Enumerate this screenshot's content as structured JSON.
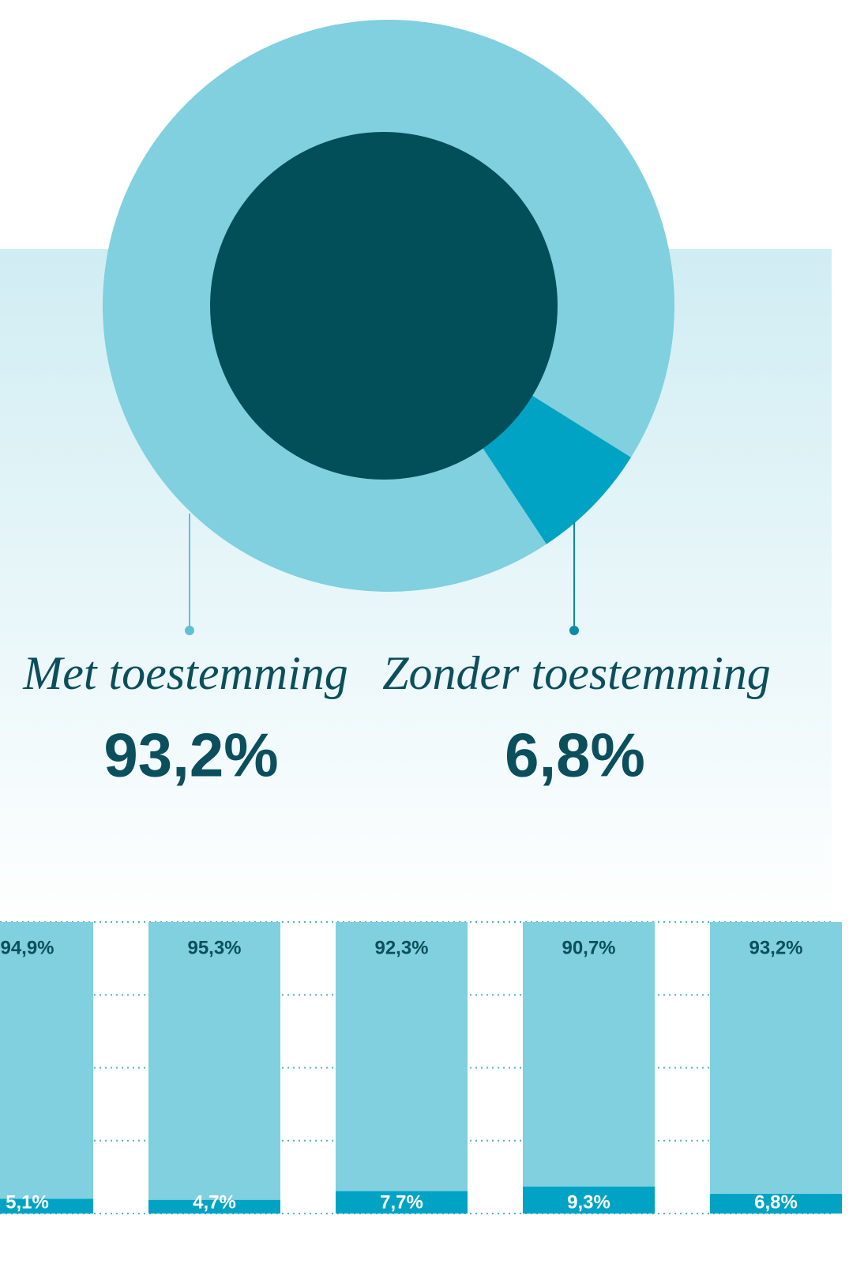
{
  "chart_data": [
    {
      "type": "pie",
      "categories": [
        "Met toestemming",
        "Zonder toestemming"
      ],
      "values": [
        93.2,
        6.8
      ],
      "value_labels": [
        "93,2%",
        "6,8%"
      ],
      "colors": [
        "#80d0df",
        "#00a3c4"
      ]
    },
    {
      "type": "stacked_bar",
      "categories": [
        null,
        null,
        null,
        null,
        null
      ],
      "series": [
        {
          "color": "#00a3c4",
          "values": [
            5.1,
            4.7,
            7.7,
            9.3,
            6.8
          ],
          "value_labels": [
            "5,1%",
            "4,7%",
            "7,7%",
            "9,3%",
            "6,8%"
          ]
        },
        {
          "color": "#80d0df",
          "values": [
            94.9,
            95.3,
            92.3,
            90.7,
            93.2
          ],
          "value_labels": [
            "94,9%",
            "95,3%",
            "92,3%",
            "90,7%",
            "93,2%"
          ]
        }
      ],
      "ylim": [
        0,
        100
      ],
      "yticks": [
        0,
        25,
        50,
        75,
        100
      ],
      "grid": true
    }
  ]
}
